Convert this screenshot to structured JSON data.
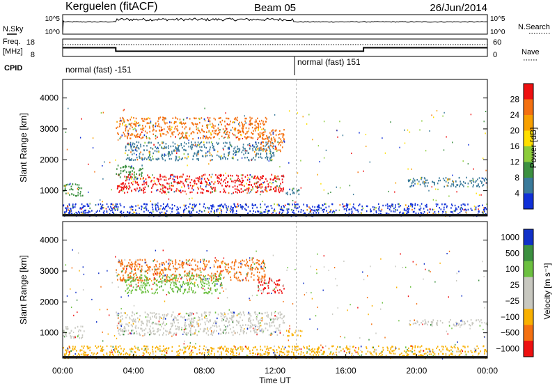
{
  "header": {
    "station": "Kerguelen (fitACF)",
    "beam": "Beam 05",
    "date": "26/Jun/2014"
  },
  "status_panel": {
    "nsky_label": "N.Sky",
    "nsky_ticks": [
      "10^5",
      "10^0"
    ],
    "nsearch_label": "N.Search",
    "nsearch_ticks": [
      "10^5",
      "10^0"
    ],
    "freq_label_1": "Freq.",
    "freq_label_2": "[MHz]",
    "freq_ticks": [
      "18",
      "8"
    ],
    "nave_label": "Nave",
    "nave_ticks": [
      "60",
      "0"
    ],
    "cpid_label": "CPID",
    "cpid_segments": [
      {
        "label": "normal (fast) -151",
        "start_hour": 0,
        "end_hour": 13.2
      },
      {
        "label": "normal (fast) 151",
        "start_hour": 13.2,
        "end_hour": 24
      }
    ],
    "freq_segments": [
      {
        "start_hour": 0,
        "end_hour": 3.0,
        "value": 13
      },
      {
        "start_hour": 3.0,
        "end_hour": 17.0,
        "value": 11
      },
      {
        "start_hour": 17.0,
        "end_hour": 24,
        "value": 13
      }
    ]
  },
  "chart_data": [
    {
      "type": "heatmap",
      "name": "power",
      "ylabel": "Slant Range [km]",
      "ylim": [
        180,
        4600
      ],
      "yticks": [
        "4000",
        "3000",
        "2000",
        "1000"
      ],
      "xlim": [
        0,
        24
      ],
      "colorbar_label": "Power [dB]",
      "colorbar_ticks": [
        "28",
        "24",
        "20",
        "16",
        "12",
        "8",
        "4"
      ],
      "colorbar_colors": [
        "#ee1010",
        "#f47010",
        "#f8a000",
        "#ffdf00",
        "#8ccc3a",
        "#3c9040",
        "#3a7a9a",
        "#1030d8"
      ],
      "regions": [
        {
          "t0": 0.0,
          "t1": 1.2,
          "r0": 850,
          "r1": 1250,
          "color": "#3c9040"
        },
        {
          "t0": 3.0,
          "t1": 12.5,
          "r0": 950,
          "r1": 1550,
          "color": "#ee1010"
        },
        {
          "t0": 3.0,
          "t1": 4.5,
          "r0": 1400,
          "r1": 1850,
          "color": "#3c9040"
        },
        {
          "t0": 3.0,
          "t1": 11.5,
          "r0": 2700,
          "r1": 3400,
          "color": "#f47010"
        },
        {
          "t0": 3.5,
          "t1": 12.0,
          "r0": 2000,
          "r1": 2600,
          "color": "#3a7a9a"
        },
        {
          "t0": 11.0,
          "t1": 12.5,
          "r0": 2300,
          "r1": 3000,
          "color": "#f47010"
        },
        {
          "t0": 12.5,
          "t1": 13.5,
          "r0": 900,
          "r1": 1100,
          "color": "#3a7a9a"
        },
        {
          "t0": 19.5,
          "t1": 24.0,
          "r0": 1150,
          "r1": 1450,
          "color": "#3a7a9a"
        },
        {
          "t0": 0.0,
          "t1": 24.0,
          "r0": 200,
          "r1": 600,
          "color": "#1030d8"
        }
      ]
    },
    {
      "type": "heatmap",
      "name": "velocity",
      "ylabel": "Slant Range [km]",
      "xlabel": "Time UT",
      "ylim": [
        180,
        4600
      ],
      "yticks": [
        "4000",
        "3000",
        "2000",
        "1000"
      ],
      "xlim": [
        0,
        24
      ],
      "xticks": [
        "00:00",
        "04:00",
        "08:00",
        "12:00",
        "16:00",
        "20:00",
        "00:00"
      ],
      "colorbar_label": "Velocity [m s⁻¹]",
      "colorbar_ticks": [
        "1000",
        "500",
        "100",
        "25",
        "−25",
        "−100",
        "−500",
        "−1000"
      ],
      "colorbar_colors": [
        "#1030c8",
        "#3c9040",
        "#6cc040",
        "#c8c8c0",
        "#c8c8c0",
        "#f8b000",
        "#f47010",
        "#ee1010"
      ],
      "regions": [
        {
          "t0": 0.0,
          "t1": 1.2,
          "r0": 850,
          "r1": 1250,
          "color": "#c8c8c0"
        },
        {
          "t0": 3.0,
          "t1": 12.5,
          "r0": 950,
          "r1": 1700,
          "color": "#c8c8c0"
        },
        {
          "t0": 3.0,
          "t1": 11.5,
          "r0": 2700,
          "r1": 3400,
          "color": "#f47010"
        },
        {
          "t0": 3.5,
          "t1": 9.0,
          "r0": 2300,
          "r1": 2900,
          "color": "#6cc040"
        },
        {
          "t0": 11.0,
          "t1": 12.5,
          "r0": 2300,
          "r1": 2800,
          "color": "#ee1010"
        },
        {
          "t0": 12.5,
          "t1": 13.5,
          "r0": 900,
          "r1": 1100,
          "color": "#f8b000"
        },
        {
          "t0": 19.5,
          "t1": 24.0,
          "r0": 1250,
          "r1": 1450,
          "color": "#c8c8c0"
        },
        {
          "t0": 0.0,
          "t1": 24.0,
          "r0": 200,
          "r1": 600,
          "color": "#f8b000"
        }
      ]
    }
  ]
}
